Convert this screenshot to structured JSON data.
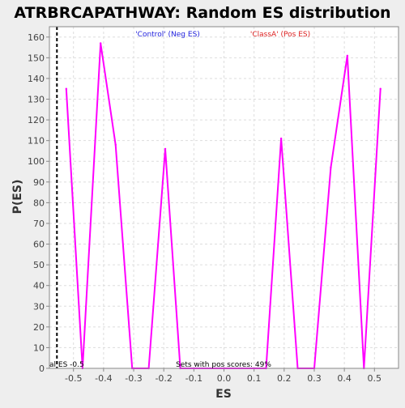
{
  "chart_data": {
    "type": "line",
    "title": "ATRBRCAPATHWAY: Random ES distribution",
    "xlabel": "ES",
    "ylabel": "P(ES)",
    "xlim": [
      -0.58,
      0.58
    ],
    "ylim": [
      0,
      165
    ],
    "xticks": [
      -0.5,
      -0.4,
      -0.3,
      -0.2,
      -0.1,
      0.0,
      0.1,
      0.2,
      0.3,
      0.4,
      0.5
    ],
    "xtick_labels": [
      "-0.5",
      "-0.4",
      "-0.3",
      "-0.2",
      "-0.1",
      "0.0",
      "0.1",
      "0.2",
      "0.3",
      "0.4",
      "0.5"
    ],
    "yticks": [
      0,
      10,
      20,
      30,
      40,
      50,
      60,
      70,
      80,
      90,
      100,
      110,
      120,
      130,
      140,
      150,
      160
    ],
    "ytick_labels": [
      "0",
      "10",
      "20",
      "30",
      "40",
      "50",
      "60",
      "70",
      "80",
      "90",
      "100",
      "110",
      "120",
      "130",
      "140",
      "150",
      "160"
    ],
    "grid": true,
    "series": [
      {
        "color": "#ff00ff",
        "x": [
          -0.524,
          -0.47,
          -0.41,
          -0.36,
          -0.305,
          -0.25,
          -0.195,
          -0.145,
          0.14,
          0.19,
          0.245,
          0.3,
          0.355,
          0.41,
          0.465,
          0.52
        ],
        "y": [
          135,
          0,
          157,
          108,
          0,
          0,
          106,
          0,
          0,
          111,
          0,
          0,
          97,
          151,
          0,
          135
        ]
      }
    ],
    "vline": {
      "x": -0.555,
      "color": "#000000",
      "style": "dashed"
    },
    "legend": {
      "control": {
        "text": "'Control' (Neg ES)",
        "color": "#2222dd"
      },
      "classa": {
        "text": "'ClassA' (Pos ES)",
        "color": "#dd2222"
      }
    },
    "annotations": {
      "actual_es": "al ES -0.5",
      "pos_scores": "Sets with pos scores: 49%"
    }
  }
}
